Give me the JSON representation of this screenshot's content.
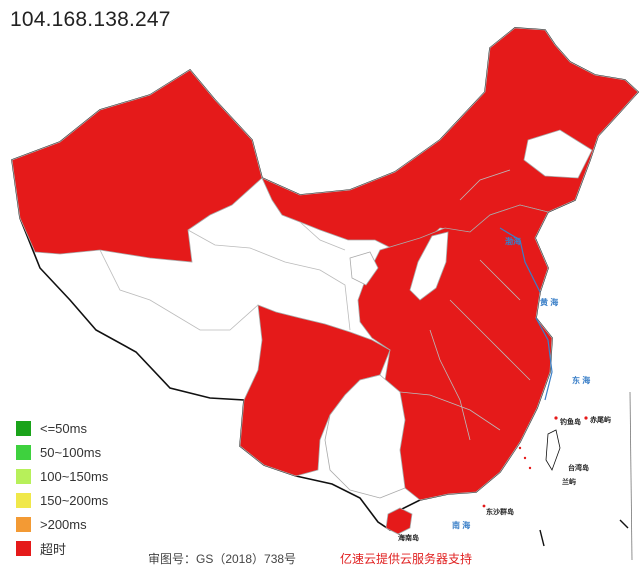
{
  "title": "104.168.138.247",
  "colors": {
    "timeout": "#e51a1a",
    "no_data": "#ffffff",
    "border_outer": "#111111",
    "border_inner": "#aaaaaa",
    "sea": "#3a7fc8"
  },
  "legend": [
    {
      "label": "<=50ms",
      "color": "#1aa31a"
    },
    {
      "label": "50~100ms",
      "color": "#3ed13e"
    },
    {
      "label": "100~150ms",
      "color": "#b7f05a"
    },
    {
      "label": "150~200ms",
      "color": "#f0e84a"
    },
    {
      "label": ">200ms",
      "color": "#f39a34"
    },
    {
      "label": "超时",
      "color": "#e51a1a"
    }
  ],
  "sea_labels": {
    "bohai": "渤海",
    "yellow_sea": "黄 海",
    "east_sea": "东 海",
    "south_sea": "南 海"
  },
  "island_labels": {
    "diaoyu": "钓鱼岛",
    "chiwei": "赤尾屿",
    "taiwan": "台湾岛",
    "lanyu": "兰屿",
    "dongsha": "东沙群岛",
    "hainan": "海南岛"
  },
  "footer": {
    "approval": "审图号：GS（2018）738号",
    "support": "亿速云提供云服务器支持"
  }
}
